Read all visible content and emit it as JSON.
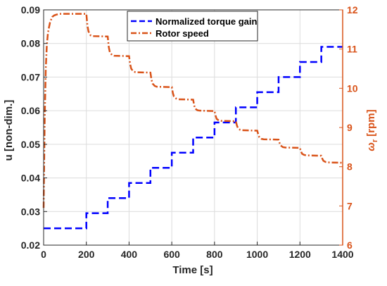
{
  "chart_data": {
    "type": "line",
    "title": "",
    "xlabel": "Time [s]",
    "ylabel_left": "u [non-dim.]",
    "ylabel_right_symbol": "ω",
    "ylabel_right_subscript": "r",
    "ylabel_right_unit": "[rpm]",
    "xlim": [
      0,
      1400
    ],
    "ylim_left": [
      0.02,
      0.09
    ],
    "ylim_right": [
      6,
      12
    ],
    "x_ticks": [
      0,
      200,
      400,
      600,
      800,
      1000,
      1200,
      1400
    ],
    "x_tick_labels": [
      "0",
      "200",
      "400",
      "600",
      "800",
      "1000",
      "1200",
      "1400"
    ],
    "y_left_ticks": [
      0.02,
      0.03,
      0.04,
      0.05,
      0.06,
      0.07,
      0.08,
      0.09
    ],
    "y_left_tick_labels": [
      "0.02",
      "0.03",
      "0.04",
      "0.05",
      "0.06",
      "0.07",
      "0.08",
      "0.09"
    ],
    "y_right_ticks": [
      6,
      7,
      8,
      9,
      10,
      11,
      12
    ],
    "y_right_tick_labels": [
      "6",
      "7",
      "8",
      "9",
      "10",
      "11",
      "12"
    ],
    "grid": true,
    "legend_position": "top-center",
    "series": [
      {
        "name": "Normalized torque gain",
        "axis": "left",
        "color": "#0000ff",
        "style": "dashed",
        "x": [
          0,
          200,
          200,
          300,
          300,
          400,
          400,
          500,
          500,
          600,
          600,
          700,
          700,
          800,
          800,
          900,
          900,
          1000,
          1000,
          1100,
          1100,
          1200,
          1200,
          1300,
          1300,
          1400
        ],
        "y": [
          0.025,
          0.025,
          0.0295,
          0.0295,
          0.034,
          0.034,
          0.0385,
          0.0385,
          0.043,
          0.043,
          0.0475,
          0.0475,
          0.052,
          0.052,
          0.0565,
          0.0565,
          0.061,
          0.061,
          0.0655,
          0.0655,
          0.07,
          0.07,
          0.0745,
          0.0745,
          0.079,
          0.079
        ]
      },
      {
        "name": "Rotor speed",
        "axis": "right",
        "color": "#d95319",
        "style": "dashdot",
        "x": [
          0,
          5,
          10,
          15,
          20,
          25,
          30,
          35,
          40,
          50,
          60,
          80,
          200,
          205,
          210,
          220,
          230,
          300,
          305,
          310,
          320,
          330,
          400,
          405,
          410,
          420,
          430,
          500,
          505,
          510,
          520,
          530,
          600,
          605,
          610,
          620,
          630,
          700,
          705,
          710,
          720,
          730,
          800,
          805,
          810,
          820,
          830,
          900,
          905,
          910,
          920,
          930,
          1000,
          1005,
          1010,
          1020,
          1030,
          1100,
          1105,
          1110,
          1120,
          1130,
          1200,
          1205,
          1210,
          1220,
          1230,
          1300,
          1305,
          1310,
          1320,
          1330,
          1400
        ],
        "y": [
          6.95,
          9.2,
          10.5,
          11.1,
          11.4,
          11.55,
          11.68,
          11.75,
          11.82,
          11.86,
          11.88,
          11.9,
          11.9,
          11.6,
          11.45,
          11.35,
          11.33,
          11.32,
          11.05,
          10.92,
          10.85,
          10.83,
          10.82,
          10.62,
          10.5,
          10.43,
          10.41,
          10.4,
          10.22,
          10.12,
          10.06,
          10.04,
          10.03,
          9.88,
          9.79,
          9.74,
          9.72,
          9.71,
          9.56,
          9.48,
          9.44,
          9.43,
          9.42,
          9.3,
          9.22,
          9.18,
          9.17,
          9.16,
          9.05,
          8.98,
          8.94,
          8.93,
          8.92,
          8.82,
          8.75,
          8.71,
          8.7,
          8.69,
          8.6,
          8.54,
          8.5,
          8.49,
          8.48,
          8.39,
          8.33,
          8.3,
          8.29,
          8.28,
          8.2,
          8.15,
          8.12,
          8.11,
          8.1
        ]
      }
    ],
    "colors": {
      "left_axis": "#262626",
      "right_axis": "#d95319",
      "grid": "#dcdcdc"
    }
  }
}
